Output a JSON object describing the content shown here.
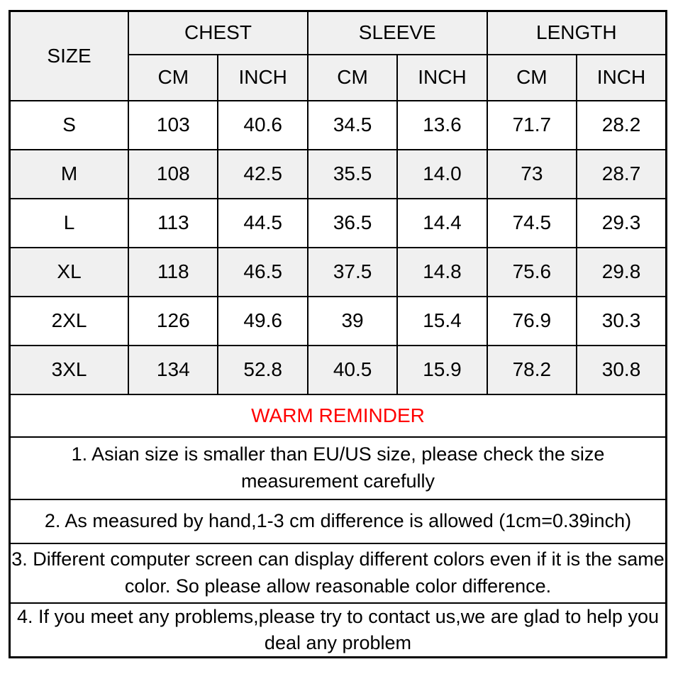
{
  "size_table": {
    "corner_label": "SIZE",
    "groups": [
      {
        "label": "CHEST"
      },
      {
        "label": "SLEEVE"
      },
      {
        "label": "LENGTH"
      }
    ],
    "unit_headers": [
      "CM",
      "INCH",
      "CM",
      "INCH",
      "CM",
      "INCH"
    ],
    "rows": [
      {
        "size": "S",
        "values": [
          "103",
          "40.6",
          "34.5",
          "13.6",
          "71.7",
          "28.2"
        ]
      },
      {
        "size": "M",
        "values": [
          "108",
          "42.5",
          "35.5",
          "14.0",
          "73",
          "28.7"
        ]
      },
      {
        "size": "L",
        "values": [
          "113",
          "44.5",
          "36.5",
          "14.4",
          "74.5",
          "29.3"
        ]
      },
      {
        "size": "XL",
        "values": [
          "118",
          "46.5",
          "37.5",
          "14.8",
          "75.6",
          "29.8"
        ]
      },
      {
        "size": "2XL",
        "values": [
          "126",
          "49.6",
          "39",
          "15.4",
          "76.9",
          "30.3"
        ]
      },
      {
        "size": "3XL",
        "values": [
          "134",
          "52.8",
          "40.5",
          "15.9",
          "78.2",
          "30.8"
        ]
      }
    ]
  },
  "reminder": {
    "title": "WARM REMINDER",
    "color": "#ff0000"
  },
  "notes": [
    {
      "text": "1. Asian size is smaller than EU/US size, please check the size measurement carefully"
    },
    {
      "text": "2. As measured by hand,1-3 cm difference is allowed (1cm=0.39inch)"
    },
    {
      "text": "3. Different computer screen can display different colors even if it is the same color. So please allow reasonable color difference."
    },
    {
      "text": "4. If you meet any problems,please try to contact us,we are glad to help you deal any problem"
    }
  ],
  "colors": {
    "row_alt": "#f0f0f0",
    "border": "#000000",
    "text": "#000000",
    "background": "#ffffff"
  }
}
